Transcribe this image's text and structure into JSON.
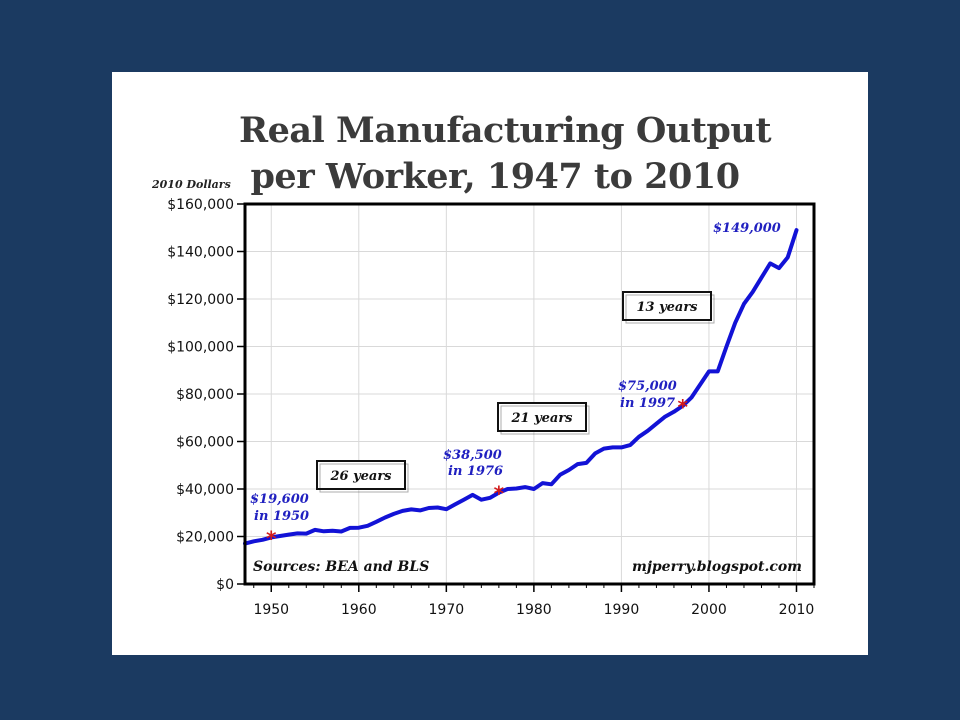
{
  "chart_data": {
    "type": "line",
    "title_line1": "Real Manufacturing Output",
    "title_line2": "per Worker, 1947 to 2010",
    "units_label": "2010 Dollars",
    "xlabel": "",
    "ylabel": "",
    "xlim": [
      1947,
      2012
    ],
    "ylim": [
      0,
      160000
    ],
    "x_ticks": [
      1950,
      1960,
      1970,
      1980,
      1990,
      2000,
      2010
    ],
    "y_ticks": [
      0,
      20000,
      40000,
      60000,
      80000,
      100000,
      120000,
      140000,
      160000
    ],
    "y_tick_labels": [
      "$0",
      "$20,000",
      "$40,000",
      "$60,000",
      "$80,000",
      "$100,000",
      "$120,000",
      "$140,000",
      "$160,000"
    ],
    "grid": true,
    "line_color": "#1212d6",
    "marker_color": "#d21b1b",
    "series": [
      {
        "x": [
          1947,
          1948,
          1949,
          1950,
          1951,
          1952,
          1953,
          1954,
          1955,
          1956,
          1957,
          1958,
          1959,
          1960,
          1961,
          1962,
          1963,
          1964,
          1965,
          1966,
          1967,
          1968,
          1969,
          1970,
          1971,
          1972,
          1973,
          1974,
          1975,
          1976,
          1977,
          1978,
          1979,
          1980,
          1981,
          1982,
          1983,
          1984,
          1985,
          1986,
          1987,
          1988,
          1989,
          1990,
          1991,
          1992,
          1993,
          1994,
          1995,
          1996,
          1997,
          1998,
          1999,
          2000,
          2001,
          2002,
          2003,
          2004,
          2005,
          2006,
          2007,
          2008,
          2009,
          2010
        ],
        "y": [
          17000,
          18000,
          18600,
          19600,
          20200,
          20800,
          21300,
          21200,
          22800,
          22200,
          22400,
          22100,
          23600,
          23700,
          24500,
          26200,
          28000,
          29500,
          30800,
          31400,
          31000,
          32000,
          32200,
          31500,
          33500,
          35500,
          37500,
          35500,
          36300,
          38500,
          40000,
          40200,
          40800,
          40000,
          42500,
          42000,
          46000,
          48000,
          50500,
          51000,
          55000,
          57000,
          57500,
          57500,
          58500,
          62000,
          64500,
          67500,
          70500,
          72500,
          75000,
          78500,
          84000,
          89500,
          89500,
          100000,
          110000,
          118000,
          123000,
          129000,
          135000,
          133000,
          137500,
          149000
        ]
      }
    ],
    "markers": [
      {
        "x": 1950,
        "y": 19600
      },
      {
        "x": 1976,
        "y": 38500
      },
      {
        "x": 1997,
        "y": 75000
      }
    ],
    "annotations": [
      {
        "line1": "$19,600",
        "line2": "in 1950"
      },
      {
        "line1": "$38,500",
        "line2": "in 1976"
      },
      {
        "line1": "$75,000",
        "line2": "in 1997"
      },
      {
        "line1": "$149,000",
        "line2": ""
      }
    ],
    "interval_labels": [
      "26 years",
      "21 years",
      "13 years"
    ],
    "source": "Sources: BEA and BLS",
    "credit": "mjperry.blogspot.com"
  }
}
